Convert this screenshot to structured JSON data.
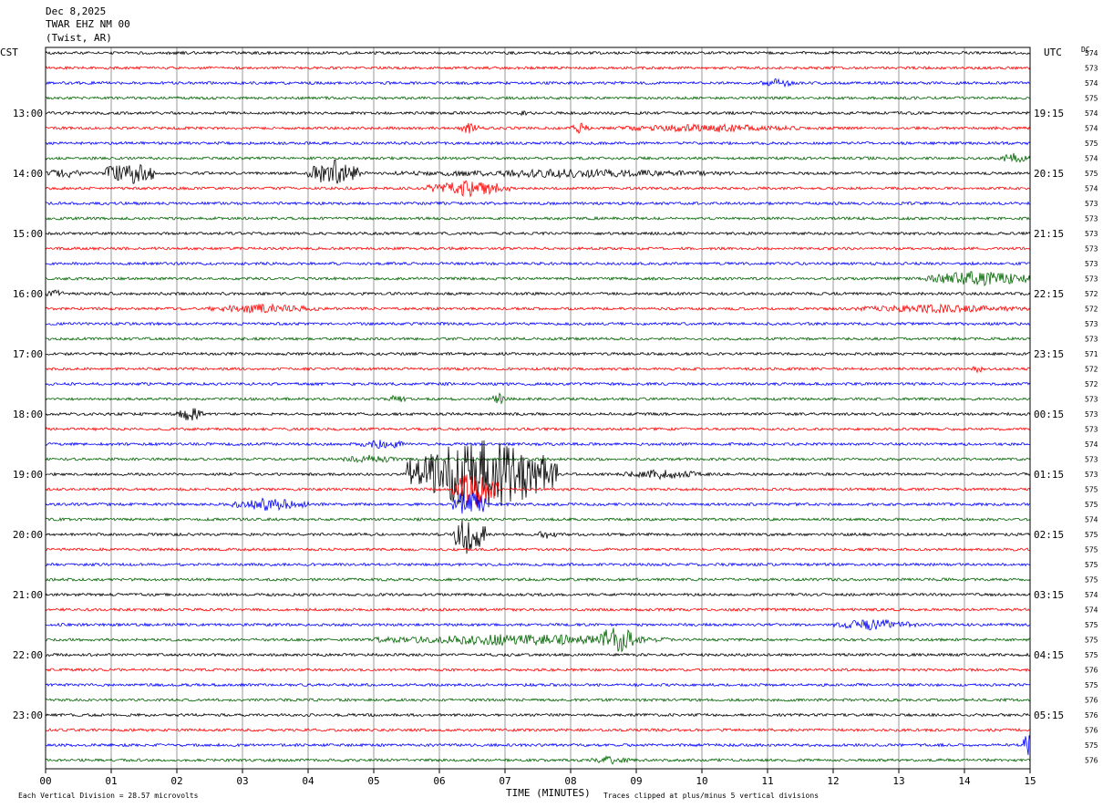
{
  "header": {
    "date": "Dec 8,2025",
    "station": "TWAR EHZ NM 00",
    "location": "(Twist, AR)"
  },
  "left_axis_label": "CST",
  "right_axis_label": "UTC",
  "dc_label": "DC",
  "footer": {
    "scale": "Each Vertical Division =   28.57 microvolts",
    "xlabel": "TIME (MINUTES)",
    "clip_note": "Traces clipped at plus/minus 5 vertical divisions"
  },
  "colors": {
    "traces": [
      "#000000",
      "#ff0000",
      "#0000ff",
      "#006400"
    ],
    "grid": "#808080"
  },
  "chart_data": {
    "type": "line",
    "xlabel": "TIME (MINUTES)",
    "xlim": [
      0,
      15
    ],
    "x_ticks": [
      "00",
      "01",
      "02",
      "03",
      "04",
      "05",
      "06",
      "07",
      "08",
      "09",
      "10",
      "11",
      "12",
      "13",
      "14",
      "15"
    ],
    "rows": 48,
    "cst_labels": [
      {
        "row": 4,
        "label": "13:00"
      },
      {
        "row": 8,
        "label": "14:00"
      },
      {
        "row": 12,
        "label": "15:00"
      },
      {
        "row": 16,
        "label": "16:00"
      },
      {
        "row": 20,
        "label": "17:00"
      },
      {
        "row": 24,
        "label": "18:00"
      },
      {
        "row": 28,
        "label": "19:00"
      },
      {
        "row": 32,
        "label": "20:00"
      },
      {
        "row": 36,
        "label": "21:00"
      },
      {
        "row": 40,
        "label": "22:00"
      },
      {
        "row": 44,
        "label": "23:00"
      }
    ],
    "utc_labels": [
      {
        "row": 4,
        "label": "19:15"
      },
      {
        "row": 8,
        "label": "20:15"
      },
      {
        "row": 12,
        "label": "21:15"
      },
      {
        "row": 16,
        "label": "22:15"
      },
      {
        "row": 20,
        "label": "23:15"
      },
      {
        "row": 24,
        "label": "00:15"
      },
      {
        "row": 28,
        "label": "01:15"
      },
      {
        "row": 32,
        "label": "02:15"
      },
      {
        "row": 36,
        "label": "03:15"
      },
      {
        "row": 40,
        "label": "04:15"
      },
      {
        "row": 44,
        "label": "05:15"
      }
    ],
    "dc_offsets": [
      574,
      573,
      574,
      575,
      574,
      574,
      575,
      574,
      575,
      574,
      573,
      573,
      573,
      573,
      573,
      573,
      572,
      572,
      573,
      573,
      571,
      572,
      572,
      573,
      573,
      573,
      574,
      573,
      573,
      575,
      575,
      574,
      575,
      575,
      575,
      575,
      574,
      574,
      575,
      575,
      575,
      576,
      575,
      576,
      576,
      576,
      575,
      576
    ],
    "events": [
      {
        "row": 2,
        "start": 10.9,
        "end": 11.4,
        "amp": 0.35
      },
      {
        "row": 4,
        "start": 7.2,
        "end": 7.4,
        "amp": 0.2
      },
      {
        "row": 5,
        "start": 6.3,
        "end": 6.6,
        "amp": 0.4
      },
      {
        "row": 5,
        "start": 8.0,
        "end": 8.3,
        "amp": 0.4
      },
      {
        "row": 5,
        "start": 8.7,
        "end": 11.5,
        "amp": 0.3
      },
      {
        "row": 7,
        "start": 14.5,
        "end": 15.0,
        "amp": 0.35
      },
      {
        "row": 8,
        "start": 0.0,
        "end": 0.6,
        "amp": 0.35
      },
      {
        "row": 8,
        "start": 0.9,
        "end": 1.7,
        "amp": 0.9
      },
      {
        "row": 8,
        "start": 4.0,
        "end": 4.8,
        "amp": 0.9
      },
      {
        "row": 8,
        "start": 5.3,
        "end": 10.5,
        "amp": 0.3
      },
      {
        "row": 9,
        "start": 5.8,
        "end": 7.1,
        "amp": 0.55
      },
      {
        "row": 15,
        "start": 13.4,
        "end": 15.0,
        "amp": 0.55
      },
      {
        "row": 16,
        "start": 0.0,
        "end": 0.3,
        "amp": 0.3
      },
      {
        "row": 17,
        "start": 2.5,
        "end": 4.2,
        "amp": 0.35
      },
      {
        "row": 17,
        "start": 12.2,
        "end": 15.0,
        "amp": 0.3
      },
      {
        "row": 21,
        "start": 14.1,
        "end": 14.3,
        "amp": 0.3
      },
      {
        "row": 23,
        "start": 5.2,
        "end": 5.5,
        "amp": 0.3
      },
      {
        "row": 23,
        "start": 6.8,
        "end": 7.0,
        "amp": 0.45
      },
      {
        "row": 24,
        "start": 2.0,
        "end": 2.4,
        "amp": 0.5
      },
      {
        "row": 26,
        "start": 4.8,
        "end": 5.5,
        "amp": 0.35
      },
      {
        "row": 27,
        "start": 4.5,
        "end": 5.4,
        "amp": 0.3
      },
      {
        "row": 28,
        "start": 5.5,
        "end": 7.8,
        "amp": 2.5
      },
      {
        "row": 28,
        "start": 8.8,
        "end": 10.0,
        "amp": 0.35
      },
      {
        "row": 29,
        "start": 6.2,
        "end": 6.9,
        "amp": 1.3
      },
      {
        "row": 30,
        "start": 2.8,
        "end": 4.0,
        "amp": 0.45
      },
      {
        "row": 30,
        "start": 6.2,
        "end": 6.7,
        "amp": 1.1
      },
      {
        "row": 32,
        "start": 6.2,
        "end": 6.7,
        "amp": 1.4
      },
      {
        "row": 32,
        "start": 7.5,
        "end": 7.8,
        "amp": 0.35
      },
      {
        "row": 38,
        "start": 12.0,
        "end": 13.3,
        "amp": 0.4
      },
      {
        "row": 39,
        "start": 5.0,
        "end": 9.5,
        "amp": 0.4
      },
      {
        "row": 39,
        "start": 8.4,
        "end": 9.0,
        "amp": 1.0
      },
      {
        "row": 46,
        "start": 14.9,
        "end": 15.0,
        "amp": 1.2
      },
      {
        "row": 47,
        "start": 8.3,
        "end": 8.9,
        "amp": 0.3
      }
    ]
  }
}
